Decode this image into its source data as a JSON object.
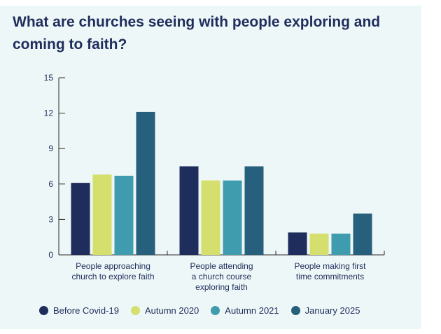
{
  "chart_data": {
    "type": "bar",
    "title": "What are churches seeing with people exploring and coming to faith?",
    "xlabel": "",
    "ylabel": "",
    "ylim": [
      0,
      15
    ],
    "yticks": [
      "0",
      "3",
      "6",
      "9",
      "12",
      "15"
    ],
    "categories": [
      [
        "People approaching",
        "church to explore faith"
      ],
      [
        "People attending",
        "a church course",
        "exploring faith"
      ],
      [
        "People making first",
        "time commitments"
      ]
    ],
    "series": [
      {
        "name": "Before Covid-19",
        "color": "#1f2d5c",
        "values": [
          6.1,
          7.5,
          1.9
        ]
      },
      {
        "name": "Autumn 2020",
        "color": "#d4df6e",
        "values": [
          6.8,
          6.3,
          1.8
        ]
      },
      {
        "name": "Autumn 2021",
        "color": "#3f9caf",
        "values": [
          6.7,
          6.3,
          1.8
        ]
      },
      {
        "name": "January 2025",
        "color": "#27607c",
        "values": [
          12.1,
          7.5,
          3.5
        ]
      }
    ],
    "legend_position": "bottom"
  }
}
